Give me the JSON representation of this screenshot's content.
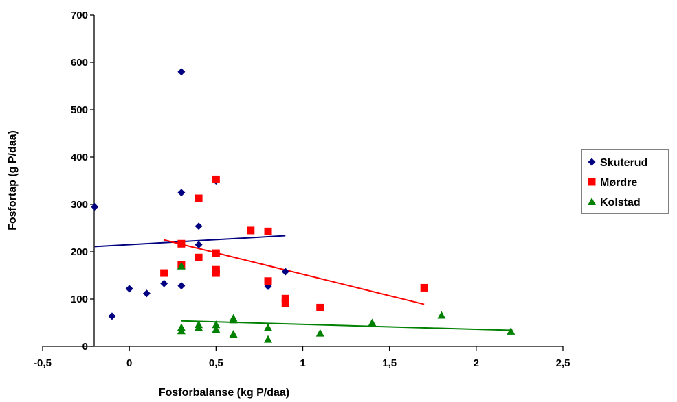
{
  "chart_data": {
    "type": "scatter",
    "title": "",
    "xlabel": "Fosforbalanse (kg P/daa)",
    "ylabel": "Fosfortap (g P/daa)",
    "xlim": [
      -0.5,
      2.5
    ],
    "ylim": [
      0,
      700
    ],
    "x_ticks": [
      "-0,5",
      "0",
      "0,5",
      "1",
      "1,5",
      "2",
      "2,5"
    ],
    "x_tick_values": [
      -0.5,
      0,
      0.5,
      1,
      1.5,
      2,
      2.5
    ],
    "y_ticks": [
      "0",
      "100",
      "200",
      "300",
      "400",
      "500",
      "600",
      "700"
    ],
    "y_tick_values": [
      0,
      100,
      200,
      300,
      400,
      500,
      600,
      700
    ],
    "grid": false,
    "legend_position": "right",
    "series": [
      {
        "name": "Skuterud",
        "marker": "diamond",
        "color": "#000080",
        "points": [
          [
            -0.2,
            295
          ],
          [
            -0.1,
            64
          ],
          [
            0,
            122
          ],
          [
            0.1,
            112
          ],
          [
            0.2,
            133
          ],
          [
            0.3,
            580
          ],
          [
            0.3,
            325
          ],
          [
            0.3,
            128
          ],
          [
            0.4,
            254
          ],
          [
            0.4,
            215
          ],
          [
            0.5,
            350
          ],
          [
            0.8,
            127
          ],
          [
            0.9,
            158
          ]
        ],
        "trendline": [
          [
            -0.2,
            211
          ],
          [
            0.9,
            234
          ]
        ]
      },
      {
        "name": "Mørdre",
        "marker": "square",
        "color": "#ff0000",
        "points": [
          [
            0.2,
            155
          ],
          [
            0.3,
            217
          ],
          [
            0.3,
            172
          ],
          [
            0.4,
            313
          ],
          [
            0.4,
            188
          ],
          [
            0.5,
            353
          ],
          [
            0.5,
            197
          ],
          [
            0.5,
            162
          ],
          [
            0.5,
            155
          ],
          [
            0.7,
            245
          ],
          [
            0.8,
            243
          ],
          [
            0.8,
            138
          ],
          [
            0.9,
            101
          ],
          [
            0.9,
            92
          ],
          [
            1.1,
            82
          ],
          [
            1.7,
            124
          ]
        ],
        "trendline": [
          [
            0.2,
            225
          ],
          [
            1.7,
            89
          ]
        ]
      },
      {
        "name": "Kolstad",
        "marker": "triangle",
        "color": "#008000",
        "points": [
          [
            0.3,
            170
          ],
          [
            0.3,
            40
          ],
          [
            0.3,
            33
          ],
          [
            0.4,
            46
          ],
          [
            0.4,
            40
          ],
          [
            0.5,
            46
          ],
          [
            0.5,
            36
          ],
          [
            0.6,
            60
          ],
          [
            0.6,
            56
          ],
          [
            0.6,
            26
          ],
          [
            0.8,
            40
          ],
          [
            0.8,
            15
          ],
          [
            1.1,
            28
          ],
          [
            1.4,
            50
          ],
          [
            1.8,
            66
          ],
          [
            2.2,
            32
          ]
        ],
        "trendline": [
          [
            0.3,
            54
          ],
          [
            2.2,
            34
          ]
        ]
      }
    ]
  }
}
